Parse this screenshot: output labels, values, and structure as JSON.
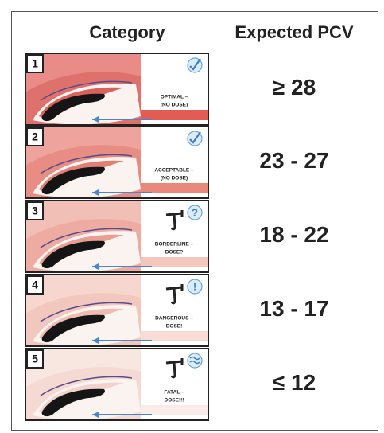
{
  "header": {
    "category": "Category",
    "pcv": "Expected PCV"
  },
  "rows": [
    {
      "number": "1",
      "text": [
        "OPTIMAL –",
        "(NO DOSE)"
      ],
      "pcv": "≥ 28"
    },
    {
      "number": "2",
      "text": [
        "ACCEPTABLE –",
        "(NO DOSE)"
      ],
      "pcv": "23 - 27"
    },
    {
      "number": "3",
      "text": [
        "BORDERLINE –",
        "DOSE?"
      ],
      "symbol": "?",
      "pcv": "18 - 22"
    },
    {
      "number": "4",
      "text": [
        "DANGEROUS –",
        "DOSE!"
      ],
      "symbol": "!",
      "pcv": "13 - 17"
    },
    {
      "number": "5",
      "text": [
        "FATAL –",
        "DOSE!!!"
      ],
      "pcv": "≤ 12"
    }
  ]
}
